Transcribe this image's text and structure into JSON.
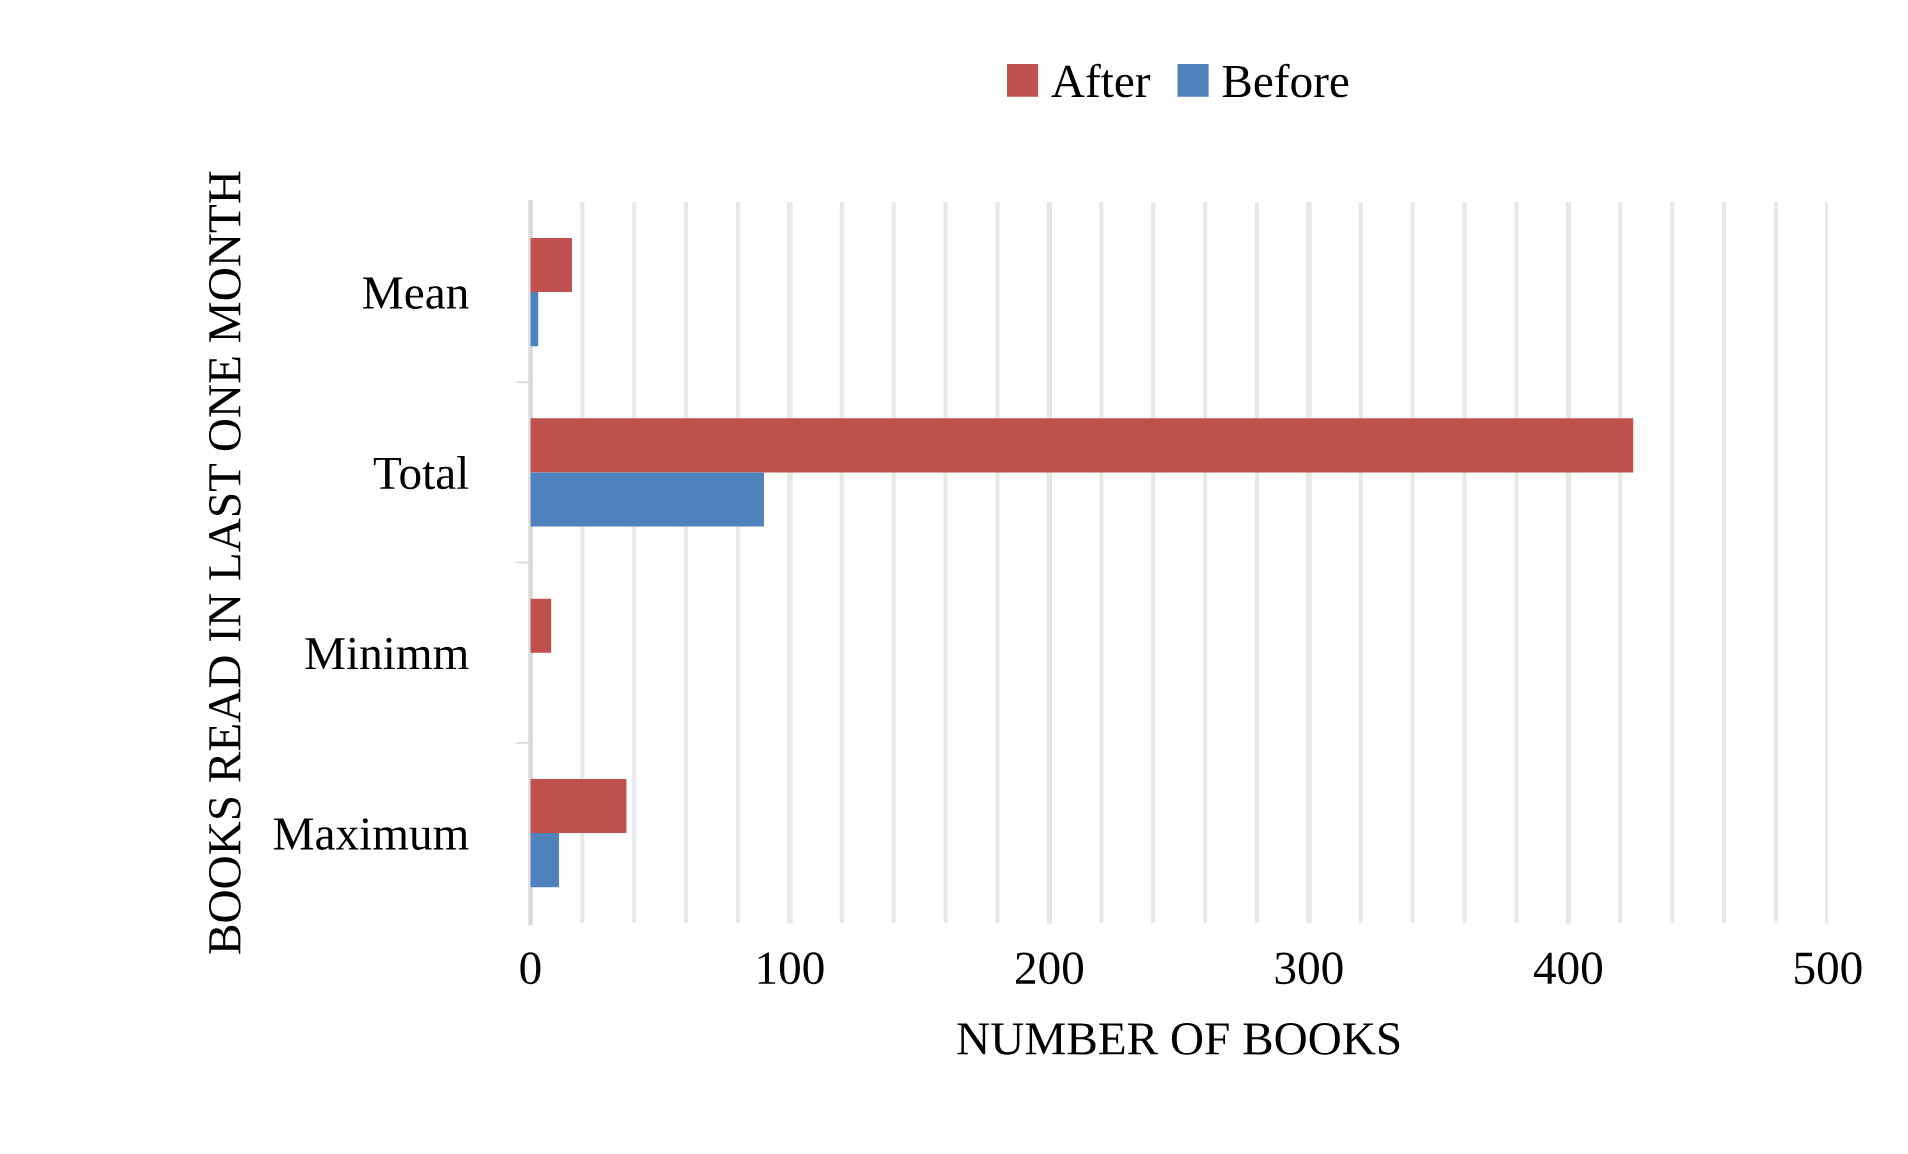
{
  "chart_data": {
    "type": "bar",
    "orientation": "horizontal",
    "xlabel": "NUMBER OF BOOKS",
    "ylabel": "BOOKS READ IN LAST ONE MONTH",
    "categories": [
      "Mean",
      "Total",
      "Minimm",
      "Maximum"
    ],
    "series": [
      {
        "name": "After",
        "color": "#c0504d",
        "values": [
          16,
          425,
          8,
          37
        ]
      },
      {
        "name": "Before",
        "color": "#4f81bd",
        "values": [
          3,
          90,
          0,
          11
        ]
      }
    ],
    "xlim": [
      0,
      500
    ],
    "xticks": [
      0,
      {
        "value": 20,
        "label": null
      },
      {
        "value": 40,
        "label": null
      },
      {
        "value": 60,
        "label": null
      },
      {
        "value": 80,
        "label": null
      },
      100,
      {
        "value": 120,
        "label": null
      },
      {
        "value": 140,
        "label": null
      },
      {
        "value": 160,
        "label": null
      },
      {
        "value": 180,
        "label": null
      },
      200,
      {
        "value": 220,
        "label": null
      },
      {
        "value": 240,
        "label": null
      },
      {
        "value": 260,
        "label": null
      },
      {
        "value": 280,
        "label": null
      },
      300,
      {
        "value": 320,
        "label": null
      },
      {
        "value": 340,
        "label": null
      },
      {
        "value": 360,
        "label": null
      },
      {
        "value": 380,
        "label": null
      },
      400,
      {
        "value": 420,
        "label": null
      },
      {
        "value": 440,
        "label": null
      },
      {
        "value": 460,
        "label": null
      },
      {
        "value": 480,
        "label": null
      },
      500
    ],
    "grid": "x",
    "legend": "top"
  }
}
